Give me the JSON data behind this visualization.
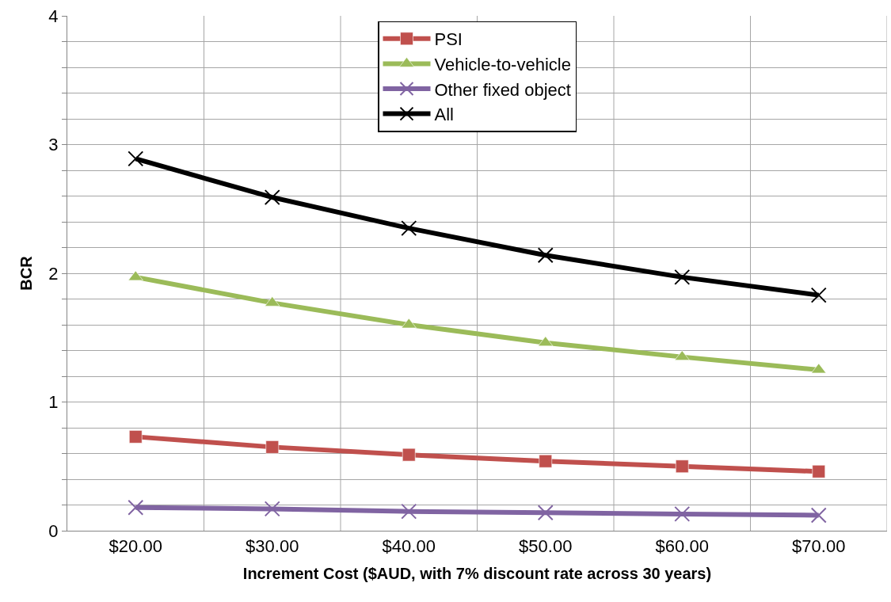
{
  "chart_data": {
    "type": "line",
    "xlabel": "Increment Cost ($AUD, with 7% discount rate across 30 years)",
    "ylabel": "BCR",
    "categories": [
      "$20.00",
      "$30.00",
      "$40.00",
      "$50.00",
      "$60.00",
      "$70.00"
    ],
    "series": [
      {
        "name": "PSI",
        "color": "#c0504d",
        "marker": "square",
        "values": [
          0.73,
          0.65,
          0.59,
          0.54,
          0.5,
          0.46
        ]
      },
      {
        "name": "Vehicle-to-vehicle",
        "color": "#9bbb59",
        "marker": "triangle",
        "values": [
          1.97,
          1.77,
          1.6,
          1.46,
          1.35,
          1.25
        ]
      },
      {
        "name": "Other fixed object",
        "color": "#8064a2",
        "marker": "cross",
        "values": [
          0.18,
          0.17,
          0.15,
          0.14,
          0.13,
          0.12
        ]
      },
      {
        "name": "All",
        "color": "#000000",
        "marker": "cross",
        "values": [
          2.89,
          2.59,
          2.35,
          2.14,
          1.97,
          1.83
        ]
      }
    ],
    "ylim": [
      0,
      4
    ],
    "yticks": [
      0,
      {
        "value": 0.2,
        "label": null
      },
      {
        "value": 0.4,
        "label": null
      },
      {
        "value": 0.6,
        "label": null
      },
      {
        "value": 0.8,
        "label": null
      },
      1,
      {
        "value": 1.2,
        "label": null
      },
      {
        "value": 1.4,
        "label": null
      },
      {
        "value": 1.6,
        "label": null
      },
      {
        "value": 1.8,
        "label": null
      },
      2,
      {
        "value": 2.2,
        "label": null
      },
      {
        "value": 2.4,
        "label": null
      },
      {
        "value": 2.6,
        "label": null
      },
      {
        "value": 2.8,
        "label": null
      },
      3,
      {
        "value": 3.2,
        "label": null
      },
      {
        "value": 3.4,
        "label": null
      },
      {
        "value": 3.6,
        "label": null
      },
      {
        "value": 3.8,
        "label": null
      },
      4
    ],
    "grid": true,
    "legend": "top",
    "line_style": "solid"
  }
}
